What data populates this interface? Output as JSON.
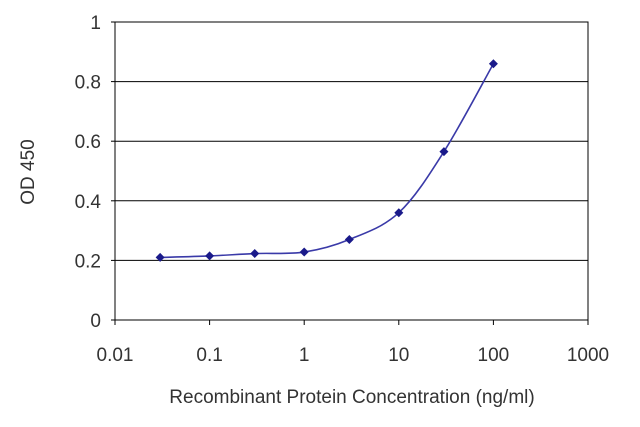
{
  "chart_data": {
    "type": "line",
    "title": "",
    "xlabel": "Recombinant Protein Concentration (ng/ml)",
    "ylabel": "OD 450",
    "x_scale": "log",
    "xlim": [
      0.01,
      1000
    ],
    "ylim": [
      0,
      1
    ],
    "x_ticks": [
      "0.01",
      "0.1",
      "1",
      "10",
      "100",
      "1000"
    ],
    "y_ticks": [
      "0",
      "0.2",
      "0.4",
      "0.6",
      "0.8",
      "1"
    ],
    "grid": "horizontal",
    "legend": "none",
    "series": [
      {
        "x": [
          0.03,
          0.1,
          0.3,
          1,
          3,
          10,
          30,
          100
        ],
        "y": [
          0.21,
          0.215,
          0.223,
          0.228,
          0.27,
          0.36,
          0.565,
          0.86
        ]
      }
    ],
    "colors": {
      "line": "#3a3aa8",
      "marker": "#1a1a8a",
      "grid": "#000000",
      "frame": "#000000"
    }
  }
}
